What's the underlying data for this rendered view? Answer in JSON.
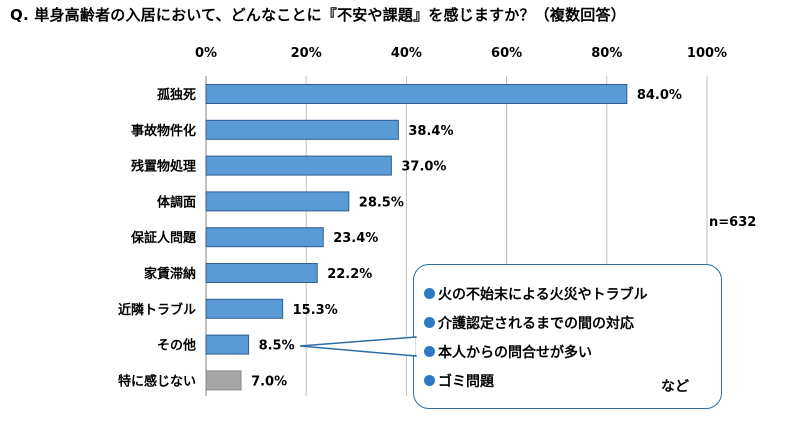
{
  "question": "Q. 単身高齢者の入居において、どんなことに『不安や課題』を感じますか？（複数回答）",
  "sample_size": "n=632",
  "callout": {
    "items": [
      "火の不始末による火災やトラブル",
      "介護認定されるまでの間の対応",
      "本人からの問合せが多い",
      "ゴミ問題"
    ],
    "suffix": "など"
  },
  "colors": {
    "bar": "#5b9bd5",
    "bar_border": "#2f5f8f",
    "bar_neutral": "#a6a6a6",
    "bar_neutral_border": "#8c8c8c",
    "gridline": "#bfbfbf",
    "callout_border": "#2e6da4",
    "bullet": "#2e78c7"
  },
  "chart_data": {
    "type": "bar",
    "orientation": "horizontal",
    "categories": [
      "孤独死",
      "事故物件化",
      "残置物処理",
      "体調面",
      "保証人問題",
      "家賃滞納",
      "近隣トラブル",
      "その他",
      "特に感じない"
    ],
    "values": [
      84.0,
      38.4,
      37.0,
      28.5,
      23.4,
      22.2,
      15.3,
      8.5,
      7.0
    ],
    "data_labels": [
      "84.0%",
      "38.4%",
      "37.0%",
      "28.5%",
      "23.4%",
      "22.2%",
      "15.3%",
      "8.5%",
      "7.0%"
    ],
    "xlim": [
      0,
      100
    ],
    "x_ticks": [
      0,
      20,
      40,
      60,
      80,
      100
    ],
    "x_tick_labels": [
      "0%",
      "20%",
      "40%",
      "60%",
      "80%",
      "100%"
    ],
    "axis_position": "top",
    "grid": true,
    "neutral_categories": [
      "特に感じない"
    ],
    "title": "",
    "xlabel": "",
    "ylabel": ""
  }
}
